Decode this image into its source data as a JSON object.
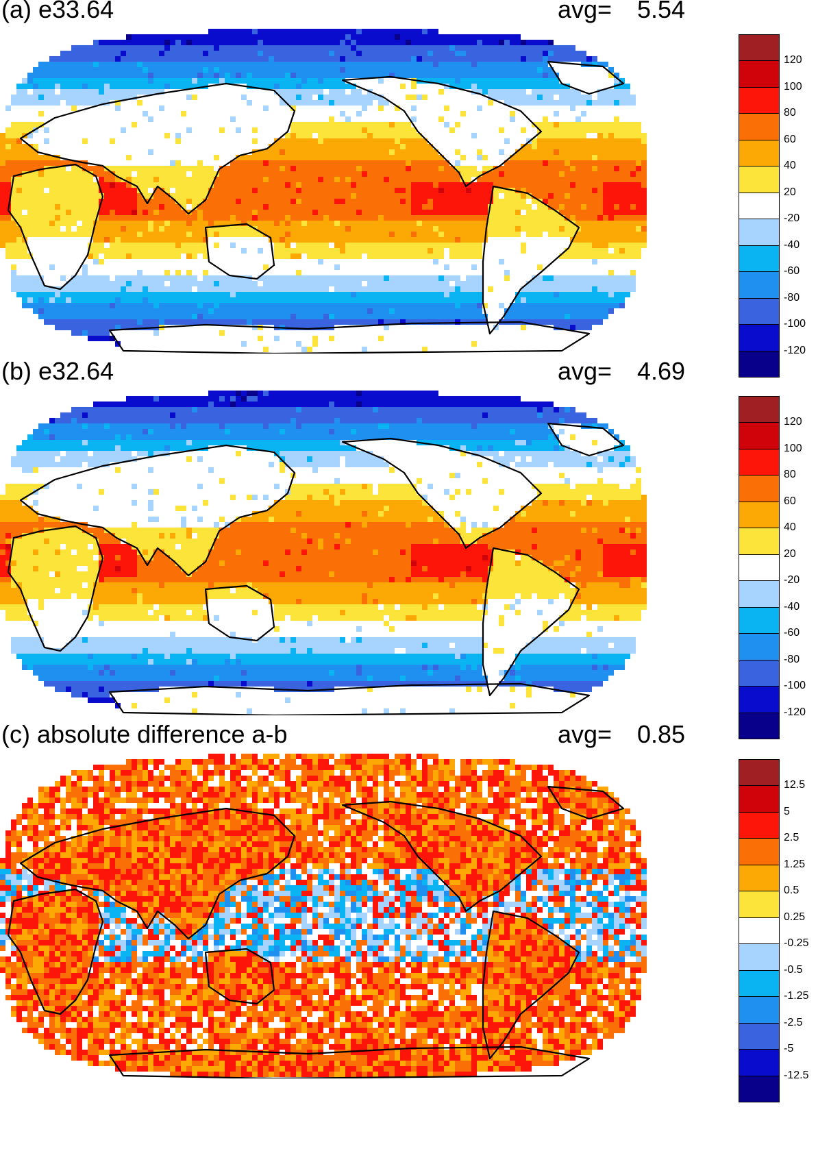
{
  "palette": [
    "#08008a",
    "#0a0ccd",
    "#3a63e0",
    "#1f8ff0",
    "#0ab4f2",
    "#a6d4ff",
    "#ffffff",
    "#fde43a",
    "#fca805",
    "#fb6f07",
    "#fd150a",
    "#d0030a",
    "#a01f23"
  ],
  "coast_color": "#000000",
  "panels": [
    {
      "key": "a",
      "title": "(a) e33.64",
      "avg_label": "avg=",
      "avg_value": "5.54",
      "pattern": "field",
      "colorbar_labels": [
        "120",
        "100",
        "80",
        "60",
        "40",
        "20",
        "-20",
        "-40",
        "-60",
        "-80",
        "-100",
        "-120"
      ]
    },
    {
      "key": "b",
      "title": "(b) e32.64",
      "avg_label": "avg=",
      "avg_value": "4.69",
      "pattern": "field",
      "colorbar_labels": [
        "120",
        "100",
        "80",
        "60",
        "40",
        "20",
        "-20",
        "-40",
        "-60",
        "-80",
        "-100",
        "-120"
      ]
    },
    {
      "key": "c",
      "title": "(c) absolute difference a-b",
      "avg_label": "avg=",
      "avg_value": "0.85",
      "pattern": "difference",
      "colorbar_labels": [
        "12.5",
        "5",
        "2.5",
        "1.25",
        "0.5",
        "0.25",
        "-0.25",
        "-0.5",
        "-1.25",
        "-2.5",
        "-5",
        "-12.5"
      ]
    }
  ]
}
